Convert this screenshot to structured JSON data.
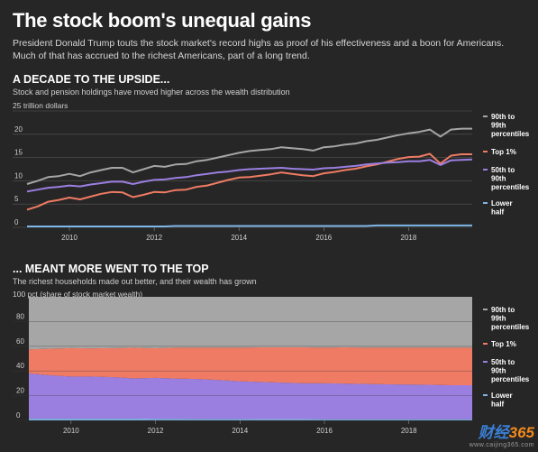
{
  "header": {
    "title": "The stock boom's unequal gains",
    "subtitle": "President Donald Trump touts the stock market's record highs as proof of his effectiveness and a boon for Americans. Much of that has accrued to the richest Americans, part of a long trend."
  },
  "section1": {
    "title": "A DECADE TO THE UPSIDE...",
    "subtitle": "Stock and pension holdings have moved higher across the wealth distribution",
    "unit": "25 trillion dollars"
  },
  "section2": {
    "title": "... MEANT MORE WENT TO THE TOP",
    "subtitle": "The richest households made out better, and their wealth has grown",
    "unit": "100 pct (share of stock market wealth)"
  },
  "watermark": {
    "logo_a": "财经",
    "logo_b": "365",
    "url": "www.caijing365.com"
  },
  "colors": {
    "background": "#262626",
    "p90_99": "#a6a6a6",
    "top1": "#ef7b64",
    "p50_90": "#9b7fe0",
    "lower": "#7fb6e8"
  },
  "chart_data": [
    {
      "type": "line",
      "title": "A DECADE TO THE UPSIDE...",
      "ylabel": "25 trillion dollars",
      "ylim": [
        0,
        25
      ],
      "xlim": [
        2009.0,
        2019.5
      ],
      "yticks": [
        "0",
        "5",
        "10",
        "15",
        "20"
      ],
      "xticks": [
        "2010",
        "2012",
        "2014",
        "2016",
        "2018"
      ],
      "legend": "right",
      "x": [
        2009.0,
        2009.25,
        2009.5,
        2009.75,
        2010.0,
        2010.25,
        2010.5,
        2010.75,
        2011.0,
        2011.25,
        2011.5,
        2011.75,
        2012.0,
        2012.25,
        2012.5,
        2012.75,
        2013.0,
        2013.25,
        2013.5,
        2013.75,
        2014.0,
        2014.25,
        2014.5,
        2014.75,
        2015.0,
        2015.25,
        2015.5,
        2015.75,
        2016.0,
        2016.25,
        2016.5,
        2016.75,
        2017.0,
        2017.25,
        2017.5,
        2017.75,
        2018.0,
        2018.25,
        2018.5,
        2018.75,
        2019.0,
        2019.25,
        2019.5
      ],
      "series": [
        {
          "name": "90th to 99th percentiles",
          "color": "#a6a6a6",
          "values": [
            9.3,
            10.0,
            10.8,
            11.0,
            11.5,
            11.0,
            11.8,
            12.3,
            12.8,
            12.8,
            11.8,
            12.5,
            13.2,
            13.0,
            13.5,
            13.6,
            14.2,
            14.5,
            15.0,
            15.5,
            16.0,
            16.4,
            16.6,
            16.8,
            17.2,
            17.0,
            16.8,
            16.5,
            17.2,
            17.4,
            17.8,
            18.0,
            18.5,
            18.8,
            19.3,
            19.8,
            20.2,
            20.5,
            21.0,
            19.5,
            21.0,
            21.2,
            21.2
          ]
        },
        {
          "name": "Top 1%",
          "color": "#ef7b64",
          "values": [
            3.8,
            4.5,
            5.5,
            5.9,
            6.4,
            6.0,
            6.6,
            7.2,
            7.6,
            7.5,
            6.5,
            7.0,
            7.6,
            7.5,
            8.0,
            8.1,
            8.7,
            9.0,
            9.6,
            10.2,
            10.7,
            10.8,
            11.1,
            11.4,
            11.8,
            11.5,
            11.2,
            11.0,
            11.6,
            11.9,
            12.3,
            12.6,
            13.1,
            13.5,
            14.1,
            14.7,
            15.1,
            15.2,
            15.8,
            13.7,
            15.4,
            15.7,
            15.7
          ]
        },
        {
          "name": "50th to 90th percentiles",
          "color": "#9b7fe0",
          "values": [
            7.7,
            8.1,
            8.5,
            8.7,
            9.0,
            8.8,
            9.2,
            9.5,
            9.8,
            9.8,
            9.3,
            9.8,
            10.2,
            10.3,
            10.6,
            10.8,
            11.2,
            11.5,
            11.8,
            12.0,
            12.3,
            12.5,
            12.6,
            12.7,
            12.8,
            12.6,
            12.5,
            12.4,
            12.7,
            12.8,
            13.0,
            13.2,
            13.5,
            13.7,
            13.9,
            14.0,
            14.2,
            14.2,
            14.5,
            13.4,
            14.4,
            14.5,
            14.6
          ]
        },
        {
          "name": "Lower half",
          "color": "#7fb6e8",
          "values": [
            0.2,
            0.2,
            0.2,
            0.2,
            0.2,
            0.2,
            0.2,
            0.2,
            0.2,
            0.2,
            0.2,
            0.2,
            0.2,
            0.2,
            0.3,
            0.3,
            0.3,
            0.3,
            0.3,
            0.3,
            0.3,
            0.3,
            0.3,
            0.3,
            0.3,
            0.3,
            0.3,
            0.3,
            0.3,
            0.3,
            0.3,
            0.3,
            0.3,
            0.4,
            0.4,
            0.4,
            0.4,
            0.4,
            0.4,
            0.4,
            0.4,
            0.4,
            0.4
          ]
        }
      ]
    },
    {
      "type": "area",
      "title": "... MEANT MORE WENT TO THE TOP",
      "ylabel": "100 pct (share of stock market wealth)",
      "ylim": [
        0,
        100
      ],
      "xlim": [
        2009.0,
        2019.5
      ],
      "yticks": [
        "0",
        "20",
        "40",
        "60",
        "80"
      ],
      "xticks": [
        "2010",
        "2012",
        "2014",
        "2016",
        "2018"
      ],
      "legend": "right",
      "stacked": true,
      "x": [
        2009.0,
        2009.5,
        2010.0,
        2010.5,
        2011.0,
        2011.5,
        2012.0,
        2012.5,
        2013.0,
        2013.5,
        2014.0,
        2014.5,
        2015.0,
        2015.5,
        2016.0,
        2016.5,
        2017.0,
        2017.5,
        2018.0,
        2018.5,
        2019.0,
        2019.5
      ],
      "series": [
        {
          "name": "Lower half",
          "color": "#7fb6e8",
          "values": [
            1.5,
            1.5,
            1.5,
            1.5,
            1.5,
            1.5,
            1.4,
            1.4,
            1.3,
            1.2,
            1.2,
            1.1,
            1.1,
            1.1,
            1.0,
            1.0,
            1.0,
            1.0,
            1.0,
            1.0,
            1.0,
            1.0
          ]
        },
        {
          "name": "50th to 90th percentiles",
          "color": "#9b7fe0",
          "values": [
            36.5,
            35.0,
            34.0,
            34.0,
            33.5,
            32.5,
            33.0,
            32.5,
            32.2,
            31.5,
            30.5,
            30.0,
            29.5,
            29.0,
            29.0,
            28.8,
            28.5,
            28.2,
            28.0,
            27.8,
            27.5,
            27.5
          ]
        },
        {
          "name": "Top 1%",
          "color": "#ef7b64",
          "values": [
            19.5,
            21.5,
            23.0,
            22.8,
            23.5,
            24.8,
            24.0,
            25.0,
            25.5,
            26.3,
            27.3,
            28.0,
            28.5,
            29.0,
            29.0,
            29.3,
            29.5,
            29.8,
            30.0,
            30.2,
            30.5,
            30.5
          ]
        },
        {
          "name": "90th to 99th percentiles",
          "color": "#a6a6a6",
          "values": [
            42.5,
            42.0,
            41.5,
            41.7,
            41.5,
            41.2,
            41.6,
            41.1,
            41.0,
            41.0,
            41.0,
            40.9,
            40.9,
            40.9,
            41.0,
            40.9,
            41.0,
            41.0,
            41.0,
            41.0,
            41.0,
            41.0
          ]
        }
      ]
    }
  ]
}
